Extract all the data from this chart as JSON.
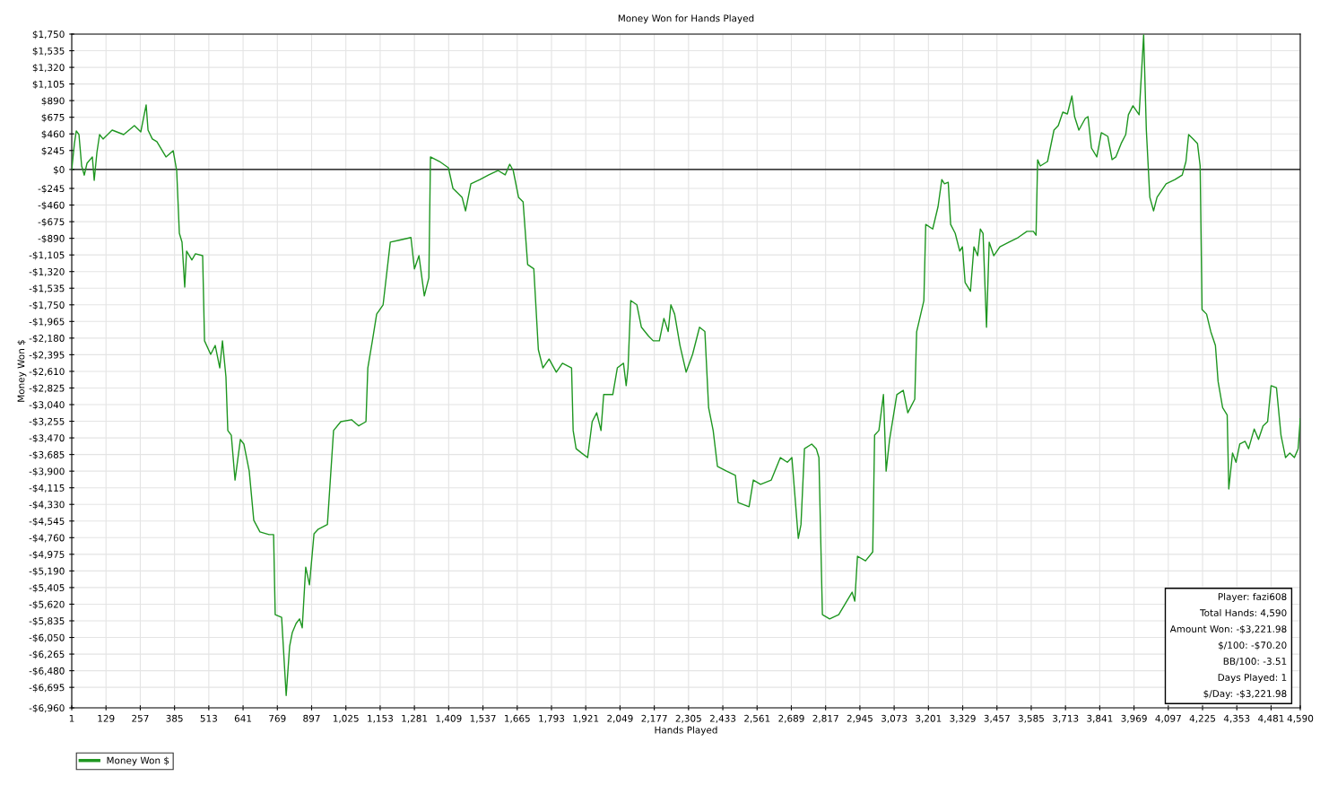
{
  "chart_data": {
    "type": "line",
    "title": "Money Won for Hands Played",
    "xlabel": "Hands Played",
    "ylabel": "Money Won $",
    "series": [
      {
        "name": "Money Won $",
        "color": "#1e9620",
        "x": [
          1,
          11,
          18,
          28,
          38,
          48,
          58,
          78,
          85,
          95,
          105,
          118,
          152,
          195,
          235,
          259,
          279,
          286,
          302,
          319,
          353,
          380,
          393,
          403,
          413,
          423,
          430,
          450,
          463,
          490,
          497,
          520,
          537,
          554,
          564,
          577,
          584,
          597,
          611,
          631,
          644,
          664,
          681,
          704,
          738,
          755,
          761,
          785,
          802,
          815,
          825,
          839,
          852,
          862,
          875,
          889,
          906,
          922,
          956,
          979,
          1006,
          1046,
          1073,
          1100,
          1107,
          1124,
          1140,
          1164,
          1191,
          1224,
          1268,
          1281,
          1298,
          1318,
          1335,
          1341,
          1375,
          1408,
          1425,
          1459,
          1472,
          1492,
          1526,
          1559,
          1593,
          1620,
          1637,
          1650,
          1670,
          1687,
          1704,
          1727,
          1744,
          1761,
          1784,
          1811,
          1834,
          1868,
          1874,
          1885,
          1905,
          1928,
          1945,
          1962,
          1978,
          1988,
          2022,
          2039,
          2062,
          2072,
          2079,
          2089,
          2112,
          2129,
          2156,
          2173,
          2196,
          2213,
          2229,
          2239,
          2253,
          2273,
          2296,
          2320,
          2346,
          2366,
          2380,
          2397,
          2413,
          2447,
          2480,
          2490,
          2531,
          2547,
          2574,
          2614,
          2648,
          2674,
          2691,
          2715,
          2725,
          2738,
          2765,
          2782,
          2792,
          2805,
          2832,
          2866,
          2916,
          2926,
          2936,
          2966,
          2993,
          3000,
          3016,
          3033,
          3043,
          3056,
          3083,
          3107,
          3124,
          3150,
          3157,
          3184,
          3191,
          3217,
          3237,
          3251,
          3261,
          3275,
          3284,
          3301,
          3318,
          3328,
          3338,
          3358,
          3371,
          3385,
          3395,
          3405,
          3418,
          3428,
          3445,
          3468,
          3502,
          3536,
          3569,
          3593,
          3603,
          3609,
          3619,
          3646,
          3670,
          3686,
          3703,
          3720,
          3737,
          3747,
          3763,
          3787,
          3797,
          3810,
          3830,
          3847,
          3871,
          3887,
          3901,
          3921,
          3938,
          3948,
          3965,
          3988,
          4005,
          4015,
          4028,
          4042,
          4055,
          4089,
          4122,
          4149,
          4163,
          4173,
          4190,
          4206,
          4216,
          4223,
          4240,
          4256,
          4273,
          4283,
          4300,
          4317,
          4323,
          4337,
          4350,
          4364,
          4384,
          4397,
          4418,
          4434,
          4451,
          4468,
          4481,
          4501,
          4518,
          4535,
          4551,
          4568,
          4582,
          4590
        ],
        "values": [
          0,
          336,
          498,
          451,
          45,
          -73,
          80,
          162,
          -140,
          219,
          451,
          394,
          509,
          451,
          567,
          486,
          834,
          509,
          394,
          359,
          162,
          242,
          -13,
          -825,
          -940,
          -1520,
          -1055,
          -1170,
          -1090,
          -1115,
          -2215,
          -2390,
          -2275,
          -2565,
          -2215,
          -2680,
          -3375,
          -3435,
          -4015,
          -3490,
          -3550,
          -3900,
          -4535,
          -4685,
          -4720,
          -4720,
          -5755,
          -5790,
          -6800,
          -6160,
          -5985,
          -5870,
          -5810,
          -5925,
          -5140,
          -5370,
          -4710,
          -4650,
          -4590,
          -3375,
          -3260,
          -3235,
          -3315,
          -3260,
          -2565,
          -2215,
          -1870,
          -1750,
          -940,
          -915,
          -880,
          -1285,
          -1115,
          -1635,
          -1400,
          162,
          103,
          22,
          -245,
          -360,
          -535,
          -185,
          -130,
          -70,
          -13,
          -70,
          68,
          -13,
          -360,
          -420,
          -1230,
          -1285,
          -2330,
          -2565,
          -2450,
          -2620,
          -2505,
          -2565,
          -3375,
          -3610,
          -3665,
          -3725,
          -3260,
          -3145,
          -3375,
          -2910,
          -2910,
          -2565,
          -2505,
          -2795,
          -2565,
          -1695,
          -1750,
          -2040,
          -2155,
          -2215,
          -2215,
          -1925,
          -2095,
          -1750,
          -1870,
          -2275,
          -2620,
          -2390,
          -2040,
          -2095,
          -3080,
          -3375,
          -3840,
          -3900,
          -3955,
          -4305,
          -4360,
          -4015,
          -4070,
          -4015,
          -3725,
          -3785,
          -3725,
          -4770,
          -4590,
          -3610,
          -3550,
          -3610,
          -3725,
          -5755,
          -5810,
          -5755,
          -5465,
          -5580,
          -5000,
          -5060,
          -4945,
          -3435,
          -3375,
          -2910,
          -3900,
          -3490,
          -2910,
          -2855,
          -3145,
          -2970,
          -2100,
          -1695,
          -710,
          -770,
          -480,
          -130,
          -185,
          -165,
          -710,
          -825,
          -1055,
          -1000,
          -1460,
          -1575,
          -1000,
          -1115,
          -770,
          -825,
          -2040,
          -940,
          -1115,
          -1000,
          -940,
          -880,
          -800,
          -800,
          -850,
          125,
          45,
          103,
          509,
          567,
          741,
          718,
          950,
          683,
          509,
          660,
          683,
          277,
          162,
          475,
          428,
          127,
          162,
          336,
          451,
          707,
          823,
          707,
          1740,
          509,
          -360,
          -535,
          -360,
          -185,
          -130,
          -73,
          103,
          451,
          394,
          336,
          45,
          -1810,
          -1870,
          -2100,
          -2275,
          -2740,
          -3080,
          -3175,
          -4130,
          -3665,
          -3785,
          -3550,
          -3515,
          -3610,
          -3355,
          -3490,
          -3315,
          -3260,
          -2795,
          -2820,
          -3435,
          -3725,
          -3665,
          -3725,
          -3610,
          -3222
        ]
      }
    ],
    "xlim": [
      1,
      4590
    ],
    "xticks": [
      1,
      {
        "value": 129,
        "label": "129"
      },
      {
        "value": 257,
        "label": "257"
      },
      {
        "value": 385,
        "label": "385"
      },
      {
        "value": 513,
        "label": "513"
      },
      {
        "value": 641,
        "label": "641"
      },
      {
        "value": 769,
        "label": "769"
      },
      {
        "value": 897,
        "label": "897"
      },
      {
        "value": 1025,
        "label": "1,025"
      },
      {
        "value": 1153,
        "label": "1,153"
      },
      {
        "value": 1281,
        "label": "1,281"
      },
      {
        "value": 1409,
        "label": "1,409"
      },
      {
        "value": 1537,
        "label": "1,537"
      },
      {
        "value": 1665,
        "label": "1,665"
      },
      {
        "value": 1793,
        "label": "1,793"
      },
      {
        "value": 1921,
        "label": "1,921"
      },
      {
        "value": 2049,
        "label": "2,049"
      },
      {
        "value": 2177,
        "label": "2,177"
      },
      {
        "value": 2305,
        "label": "2,305"
      },
      {
        "value": 2433,
        "label": "2,433"
      },
      {
        "value": 2561,
        "label": "2,561"
      },
      {
        "value": 2689,
        "label": "2,689"
      },
      {
        "value": 2817,
        "label": "2,817"
      },
      {
        "value": 2945,
        "label": "2,945"
      },
      {
        "value": 3073,
        "label": "3,073"
      },
      {
        "value": 3201,
        "label": "3,201"
      },
      {
        "value": 3329,
        "label": "3,329"
      },
      {
        "value": 3457,
        "label": "3,457"
      },
      {
        "value": 3585,
        "label": "3,585"
      },
      {
        "value": 3713,
        "label": "3,713"
      },
      {
        "value": 3841,
        "label": "3,841"
      },
      {
        "value": 3969,
        "label": "3,969"
      },
      {
        "value": 4097,
        "label": "4,097"
      },
      {
        "value": 4225,
        "label": "4,225"
      },
      {
        "value": 4353,
        "label": "4,353"
      },
      {
        "value": 4481,
        "label": "4,481"
      },
      {
        "value": 4590,
        "label": "4,590"
      }
    ],
    "ylim": [
      -6960,
      1750
    ],
    "yticks": [
      {
        "value": -6960,
        "label": "-$6,960"
      },
      {
        "value": -6695,
        "label": "-$6,695"
      },
      {
        "value": -6480,
        "label": "-$6,480"
      },
      {
        "value": -6265,
        "label": "-$6,265"
      },
      {
        "value": -6050,
        "label": "-$6,050"
      },
      {
        "value": -5835,
        "label": "-$5,835"
      },
      {
        "value": -5620,
        "label": "-$5,620"
      },
      {
        "value": -5405,
        "label": "-$5,405"
      },
      {
        "value": -5190,
        "label": "-$5,190"
      },
      {
        "value": -4975,
        "label": "-$4,975"
      },
      {
        "value": -4760,
        "label": "-$4,760"
      },
      {
        "value": -4545,
        "label": "-$4,545"
      },
      {
        "value": -4330,
        "label": "-$4,330"
      },
      {
        "value": -4115,
        "label": "-$4,115"
      },
      {
        "value": -3900,
        "label": "-$3,900"
      },
      {
        "value": -3685,
        "label": "-$3,685"
      },
      {
        "value": -3470,
        "label": "-$3,470"
      },
      {
        "value": -3255,
        "label": "-$3,255"
      },
      {
        "value": -3040,
        "label": "-$3,040"
      },
      {
        "value": -2825,
        "label": "-$2,825"
      },
      {
        "value": -2610,
        "label": "-$2,610"
      },
      {
        "value": -2395,
        "label": "-$2,395"
      },
      {
        "value": -2180,
        "label": "-$2,180"
      },
      {
        "value": -1965,
        "label": "-$1,965"
      },
      {
        "value": -1750,
        "label": "-$1,750"
      },
      {
        "value": -1535,
        "label": "-$1,535"
      },
      {
        "value": -1320,
        "label": "-$1,320"
      },
      {
        "value": -1105,
        "label": "-$1,105"
      },
      {
        "value": -890,
        "label": "-$890"
      },
      {
        "value": -675,
        "label": "-$675"
      },
      {
        "value": -460,
        "label": "-$460"
      },
      {
        "value": -245,
        "label": "-$245"
      },
      {
        "value": 0,
        "label": "$0"
      },
      {
        "value": 245,
        "label": "$245"
      },
      {
        "value": 460,
        "label": "$460"
      },
      {
        "value": 675,
        "label": "$675"
      },
      {
        "value": 890,
        "label": "$890"
      },
      {
        "value": 1105,
        "label": "$1,105"
      },
      {
        "value": 1320,
        "label": "$1,320"
      },
      {
        "value": 1535,
        "label": "$1,535"
      },
      {
        "value": 1750,
        "label": "$1,750"
      }
    ],
    "ref_lines": [
      {
        "axis": "y",
        "value": 0,
        "color": "#000000"
      }
    ],
    "annotations": [
      "Player: fazi608",
      "Total Hands: 4,590",
      "Amount Won: -$3,221.98",
      "$/100: -$70.20",
      "BB/100: -3.51",
      "Days Played: 1",
      "$/Day: -$3,221.98"
    ],
    "grid": true,
    "legend": "bottom left",
    "marker": "none",
    "line_style": "solid"
  }
}
